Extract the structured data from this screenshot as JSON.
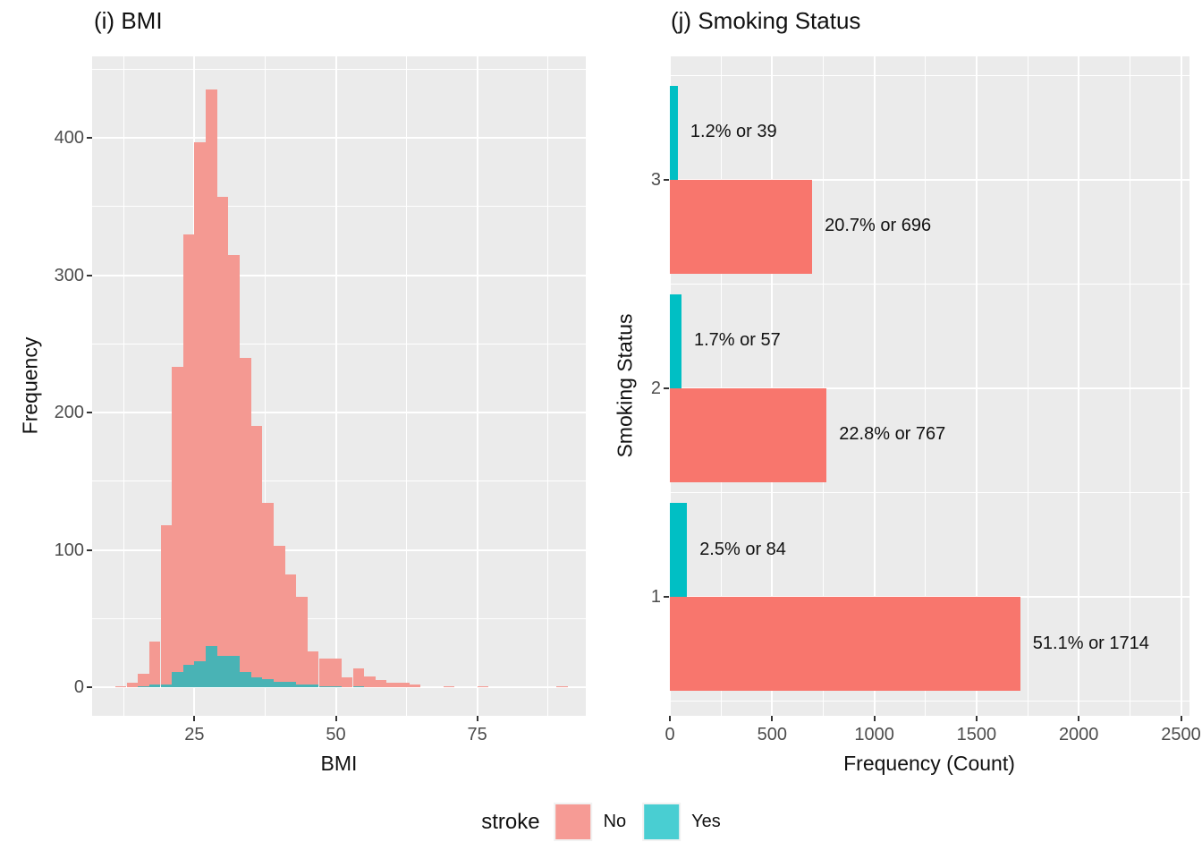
{
  "figure": {
    "left_title": "(i) BMI",
    "right_title": "(j) Smoking Status"
  },
  "colors": {
    "no_solid": "#F8766D",
    "yes_solid": "#00BFC4",
    "no_alpha": "#F49992",
    "yes_alpha": "#49B3B5",
    "legend_no": "#F69B95",
    "legend_yes": "#49CED2",
    "panel_bg": "#EBEBEB",
    "grid": "#FFFFFF",
    "tick_mark": "#333333",
    "tick_label": "#4D4D4D",
    "text": "#111111"
  },
  "legend": {
    "title": "stroke",
    "items": [
      {
        "label": "No"
      },
      {
        "label": "Yes"
      }
    ]
  },
  "chart_data": [
    {
      "type": "histogram",
      "title": "(i) BMI",
      "xlabel": "BMI",
      "ylabel": "Frequency",
      "binwidth": 2,
      "bin_centers": [
        12,
        14,
        16,
        18,
        20,
        22,
        24,
        26,
        28,
        30,
        32,
        34,
        36,
        38,
        40,
        42,
        44,
        46,
        48,
        50,
        52,
        54,
        56,
        58,
        60,
        62,
        64,
        70,
        76,
        90
      ],
      "series": [
        {
          "name": "No",
          "values": [
            1,
            3,
            10,
            33,
            118,
            233,
            330,
            397,
            435,
            357,
            315,
            240,
            190,
            134,
            103,
            82,
            66,
            26,
            21,
            21,
            7,
            14,
            8,
            5,
            3,
            3,
            2,
            1,
            1,
            1
          ]
        },
        {
          "name": "Yes",
          "values": [
            0,
            0,
            1,
            2,
            2,
            11,
            16,
            19,
            30,
            23,
            23,
            11,
            7,
            6,
            4,
            4,
            2,
            2,
            1,
            1,
            0,
            1,
            0,
            0,
            0,
            0,
            0,
            0,
            0,
            0
          ]
        }
      ],
      "x_ticks": [
        25,
        50,
        75
      ],
      "x_minor": [
        12.5,
        37.5,
        62.5,
        87.5
      ],
      "y_ticks": [
        0,
        100,
        200,
        300,
        400
      ],
      "y_minor": [
        50,
        150,
        250,
        350,
        450
      ],
      "xlim": [
        6.9,
        94.2
      ],
      "ylim": [
        -20.85,
        459.3
      ],
      "grid": true,
      "legend_position": "bottom"
    },
    {
      "type": "bar",
      "orientation": "horizontal",
      "title": "(j) Smoking Status",
      "xlabel": "Frequency (Count)",
      "ylabel": "Smoking Status",
      "categories": [
        1,
        2,
        3
      ],
      "series": [
        {
          "name": "Yes",
          "values": [
            84,
            57,
            39
          ],
          "labels": [
            "2.5% or 84",
            "1.7% or 57",
            "1.2% or 39"
          ]
        },
        {
          "name": "No",
          "values": [
            1714,
            767,
            696
          ],
          "labels": [
            "51.1% or 1714",
            "22.8% or 767",
            "20.7% or 696"
          ]
        }
      ],
      "x_ticks": [
        0,
        500,
        1000,
        1500,
        2000,
        2500
      ],
      "x_minor": [
        250,
        750,
        1250,
        1750,
        2250
      ],
      "y_minor": [
        0.5,
        1.5,
        2.5,
        3.5
      ],
      "xlim": [
        -4.4,
        2541.6
      ],
      "ylim": [
        0.43,
        3.59
      ],
      "bar_half_width": 0.45,
      "grid": true,
      "legend_position": "bottom"
    }
  ]
}
